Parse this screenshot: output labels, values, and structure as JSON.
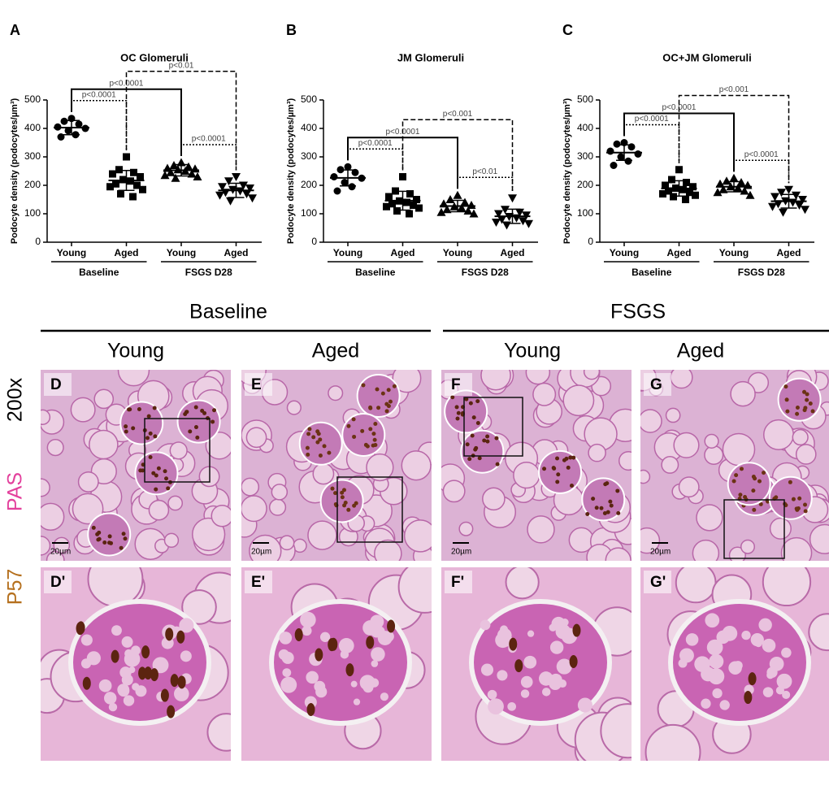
{
  "chart_data": [
    {
      "type": "dotplot",
      "panel_label": "A",
      "title": "OC Glomeruli",
      "y_label": "Podocyte density (podocytes/µm³)",
      "categories": [
        "Young",
        "Aged",
        "Young",
        "Aged"
      ],
      "group_labels": [
        "Baseline",
        "FSGS D28"
      ],
      "markers": [
        "circle",
        "square",
        "triangle",
        "triangle-down"
      ],
      "color": "#000000",
      "points": [
        [
          435,
          425,
          415,
          405,
          400,
          392,
          378,
          370
        ],
        [
          300,
          255,
          245,
          240,
          230,
          220,
          215,
          205,
          200,
          195,
          185,
          170,
          160
        ],
        [
          280,
          270,
          265,
          260,
          258,
          255,
          250,
          245,
          240,
          235,
          230,
          225
        ],
        [
          230,
          215,
          200,
          195,
          190,
          185,
          180,
          175,
          170,
          165,
          155,
          145
        ]
      ],
      "means": [
        403,
        217,
        253,
        182
      ],
      "sds": [
        25,
        35,
        20,
        25
      ],
      "ylim": [
        0,
        500
      ],
      "yticks": [
        0,
        100,
        200,
        300,
        400,
        500
      ],
      "comparisons": [
        {
          "pair": [
            0,
            1
          ],
          "label": "p<0.0001",
          "style": "dotted"
        },
        {
          "pair": [
            0,
            2
          ],
          "label": "p<0.0001",
          "style": "solid"
        },
        {
          "pair": [
            2,
            3
          ],
          "label": "p<0.0001",
          "style": "dotted"
        },
        {
          "pair": [
            1,
            3
          ],
          "label": "p<0.01",
          "style": "dashed"
        }
      ]
    },
    {
      "type": "dotplot",
      "panel_label": "B",
      "title": "JM Glomeruli",
      "y_label": "Podocyte density (podocytes/µm³)",
      "categories": [
        "Young",
        "Aged",
        "Young",
        "Aged"
      ],
      "group_labels": [
        "Baseline",
        "FSGS D28"
      ],
      "markers": [
        "circle",
        "square",
        "triangle",
        "triangle-down"
      ],
      "color": "#000000",
      "points": [
        [
          265,
          255,
          245,
          230,
          225,
          210,
          195,
          180
        ],
        [
          230,
          180,
          170,
          160,
          150,
          145,
          140,
          135,
          130,
          125,
          120,
          110,
          100
        ],
        [
          165,
          150,
          140,
          135,
          130,
          125,
          120,
          115,
          110,
          105,
          100
        ],
        [
          155,
          115,
          105,
          100,
          95,
          90,
          85,
          80,
          75,
          70,
          65,
          60
        ]
      ],
      "means": [
        226,
        146,
        127,
        91
      ],
      "sds": [
        28,
        33,
        20,
        25
      ],
      "ylim": [
        0,
        500
      ],
      "yticks": [
        0,
        100,
        200,
        300,
        400,
        500
      ],
      "comparisons": [
        {
          "pair": [
            0,
            1
          ],
          "label": "p<0.0001",
          "style": "dotted"
        },
        {
          "pair": [
            0,
            2
          ],
          "label": "p<0.0001",
          "style": "solid"
        },
        {
          "pair": [
            2,
            3
          ],
          "label": "p<0.01",
          "style": "dotted"
        },
        {
          "pair": [
            1,
            3
          ],
          "label": "p<0.001",
          "style": "dashed"
        }
      ]
    },
    {
      "type": "dotplot",
      "panel_label": "C",
      "title": "OC+JM Glomeruli",
      "y_label": "Podocyte density (podocytes/µm³)",
      "categories": [
        "Young",
        "Aged",
        "Young",
        "Aged"
      ],
      "group_labels": [
        "Baseline",
        "FSGS D28"
      ],
      "markers": [
        "circle",
        "square",
        "triangle",
        "triangle-down"
      ],
      "color": "#000000",
      "points": [
        [
          350,
          345,
          335,
          320,
          310,
          300,
          285,
          270
        ],
        [
          255,
          220,
          210,
          200,
          195,
          190,
          185,
          180,
          175,
          170,
          165,
          160,
          150
        ],
        [
          225,
          215,
          210,
          205,
          200,
          195,
          190,
          185,
          180,
          175,
          165
        ],
        [
          185,
          175,
          165,
          160,
          150,
          145,
          140,
          135,
          130,
          125,
          115,
          105
        ]
      ],
      "means": [
        315,
        189,
        195,
        144
      ],
      "sds": [
        27,
        27,
        18,
        24
      ],
      "ylim": [
        0,
        500
      ],
      "yticks": [
        0,
        100,
        200,
        300,
        400,
        500
      ],
      "comparisons": [
        {
          "pair": [
            0,
            1
          ],
          "label": "p<0.0001",
          "style": "dotted"
        },
        {
          "pair": [
            0,
            2
          ],
          "label": "p<0.0001",
          "style": "solid"
        },
        {
          "pair": [
            2,
            3
          ],
          "label": "p<0.0001",
          "style": "dotted"
        },
        {
          "pair": [
            1,
            3
          ],
          "label": "p<0.001",
          "style": "dashed"
        }
      ]
    }
  ],
  "micrographs": {
    "headings": [
      "Baseline",
      "FSGS"
    ],
    "columns": [
      "Young",
      "Aged",
      "Young",
      "Aged"
    ],
    "side_labels": {
      "magnification": "200x",
      "stain_pas": "PAS",
      "stain_p57": "P57"
    },
    "rows": [
      {
        "panels": [
          {
            "label": "D",
            "scale_bar": "20µm"
          },
          {
            "label": "E",
            "scale_bar": "20µm"
          },
          {
            "label": "F",
            "scale_bar": "20µm"
          },
          {
            "label": "G",
            "scale_bar": "20µm"
          }
        ]
      },
      {
        "panels": [
          {
            "label": "D'"
          },
          {
            "label": "E'"
          },
          {
            "label": "F'"
          },
          {
            "label": "G'"
          }
        ]
      }
    ]
  }
}
